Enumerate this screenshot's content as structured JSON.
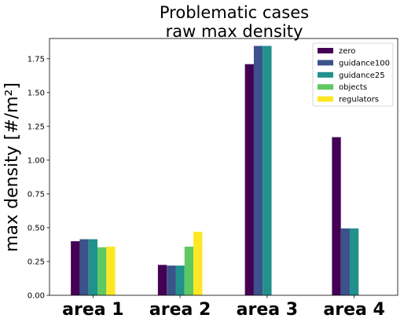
{
  "chart_data": {
    "type": "bar",
    "title": "Problematic cases",
    "subtitle": "raw max density",
    "xlabel": "",
    "ylabel": "max density [#/m²]",
    "categories": [
      "area 1",
      "area 2",
      "area 3",
      "area 4"
    ],
    "ylim": [
      0,
      1.9
    ],
    "yticks": [
      "0.00",
      "0.25",
      "0.50",
      "0.75",
      "1.00",
      "1.25",
      "1.50",
      "1.75"
    ],
    "series": [
      {
        "name": "zero",
        "color": "#440154",
        "values": [
          0.4,
          0.225,
          1.71,
          1.17
        ]
      },
      {
        "name": "guidance100",
        "color": "#3b528b",
        "values": [
          0.415,
          0.22,
          1.845,
          0.495
        ]
      },
      {
        "name": "guidance25",
        "color": "#21918c",
        "values": [
          0.415,
          0.22,
          1.845,
          0.495
        ]
      },
      {
        "name": "objects",
        "color": "#5ec962",
        "values": [
          0.355,
          0.36,
          0,
          0
        ]
      },
      {
        "name": "regulators",
        "color": "#fde725",
        "values": [
          0.36,
          0.47,
          0,
          0
        ]
      }
    ],
    "legend_position": "top-right",
    "grid": false
  }
}
